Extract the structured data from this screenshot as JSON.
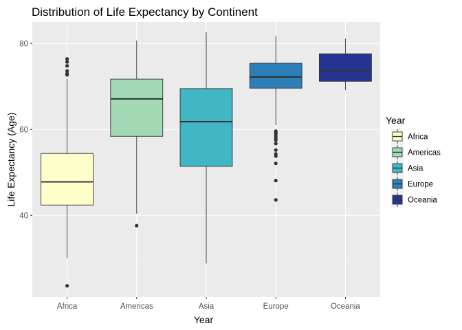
{
  "chart_data": {
    "type": "boxplot",
    "title": "Distribution of Life Expectancy by Continent",
    "xlabel": "Year",
    "ylabel": "Life Expectancy (Age)",
    "ylim": [
      21,
      85
    ],
    "yticks": [
      40,
      60,
      80
    ],
    "grid": true,
    "legend": {
      "title": "Year",
      "position": "right"
    },
    "categories": [
      "Africa",
      "Americas",
      "Asia",
      "Europe",
      "Oceania"
    ],
    "series": [
      {
        "name": "Africa",
        "color": "#FFFFCC",
        "min": 30.0,
        "q1": 42.4,
        "median": 47.8,
        "q3": 54.4,
        "max": 71.8,
        "outliers": [
          23.6,
          72.7,
          73.0,
          73.6,
          74.8,
          75.7,
          76.4
        ]
      },
      {
        "name": "Americas",
        "color": "#A1DAB4",
        "min": 40.4,
        "q1": 58.4,
        "median": 67.1,
        "q3": 71.7,
        "max": 80.7,
        "outliers": [
          37.6
        ]
      },
      {
        "name": "Asia",
        "color": "#41B6C4",
        "min": 28.8,
        "q1": 51.4,
        "median": 61.8,
        "q3": 69.5,
        "max": 82.6,
        "outliers": []
      },
      {
        "name": "Europe",
        "color": "#2C7FB8",
        "min": 61.0,
        "q1": 69.6,
        "median": 72.2,
        "q3": 75.4,
        "max": 81.8,
        "outliers": [
          43.6,
          48.1,
          52.1,
          53.8,
          54.3,
          55.2,
          56.7,
          57.5,
          58.0,
          58.5,
          59.0,
          59.3,
          59.6
        ]
      },
      {
        "name": "Oceania",
        "color": "#253494",
        "min": 69.1,
        "q1": 71.2,
        "median": 73.7,
        "q3": 77.6,
        "max": 81.2,
        "outliers": []
      }
    ]
  }
}
